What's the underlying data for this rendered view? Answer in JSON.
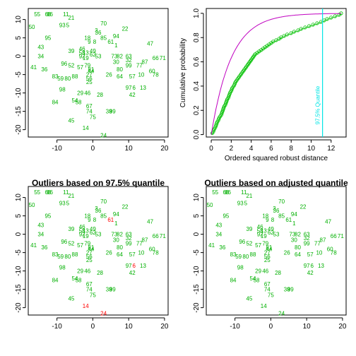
{
  "colors": {
    "normal": "#00b000",
    "outlier": "#ff0000",
    "curve": "#c000c0",
    "quantile_line": "#00e5e5",
    "ecdf": "#00c000",
    "axis": "#000000"
  },
  "chart_data": [
    {
      "type": "scatter",
      "title": "",
      "xlabel": "",
      "ylabel": "",
      "xlim": [
        -18,
        21
      ],
      "ylim": [
        -22,
        13
      ],
      "xticks": [
        -10,
        0,
        10,
        20
      ],
      "yticks": [
        -20,
        -15,
        -10,
        -5,
        0,
        5,
        10
      ],
      "xtick_labels": [
        "-10",
        "0",
        "10",
        "20"
      ],
      "ytick_labels": [
        "-20",
        "-15",
        "-10",
        "-5",
        "0",
        "5",
        "10"
      ],
      "outliers": []
    },
    {
      "type": "line",
      "title": "",
      "xlabel": "Ordered squared robust distance",
      "ylabel": "Cumulative probability",
      "xlim": [
        -0.5,
        13.5
      ],
      "ylim": [
        -0.02,
        1.04
      ],
      "xticks": [
        0,
        2,
        4,
        6,
        8,
        10,
        12
      ],
      "yticks": [
        0,
        0.2,
        0.4,
        0.6,
        0.8,
        1.0
      ],
      "xtick_labels": [
        "0",
        "2",
        "4",
        "6",
        "8",
        "10",
        "12"
      ],
      "ytick_labels": [
        "0.0",
        "0.2",
        "0.4",
        "0.6",
        "0.8",
        "1.0"
      ],
      "quantile_x": 11.14,
      "quantile_label": "97.5% Quantile"
    },
    {
      "type": "scatter",
      "title": "Outliers based on 97.5% quantile",
      "xlabel": "",
      "ylabel": "",
      "xlim": [
        -18,
        21
      ],
      "ylim": [
        -22,
        13
      ],
      "xticks": [
        -10,
        0,
        10,
        20
      ],
      "yticks": [
        -20,
        -15,
        -10,
        -5,
        0,
        5,
        10
      ],
      "xtick_labels": [
        "-10",
        "0",
        "10",
        "20"
      ],
      "ytick_labels": [
        "-20",
        "-15",
        "-10",
        "-5",
        "0",
        "5",
        "10"
      ],
      "outliers": [
        "14",
        "24",
        "61",
        "6"
      ]
    },
    {
      "type": "scatter",
      "title": "Outliers based on adjusted quantile",
      "xlabel": "",
      "ylabel": "",
      "xlim": [
        -18,
        21
      ],
      "ylim": [
        -22,
        13
      ],
      "xticks": [
        -10,
        0,
        10,
        20
      ],
      "yticks": [
        -20,
        -15,
        -10,
        -5,
        0,
        5,
        10
      ],
      "xtick_labels": [
        "-10",
        "0",
        "10",
        "20"
      ],
      "ytick_labels": [
        "-20",
        "-15",
        "-10",
        "-5",
        "0",
        "5",
        "10"
      ],
      "outliers": []
    }
  ],
  "points": [
    {
      "id": "55",
      "x": -15.5,
      "y": 11.5
    },
    {
      "id": "68",
      "x": -12.5,
      "y": 11.5
    },
    {
      "id": "86",
      "x": -12,
      "y": 11.5
    },
    {
      "id": "11",
      "x": -7.5,
      "y": 11.5
    },
    {
      "id": "21",
      "x": -6,
      "y": 10.5
    },
    {
      "id": "70",
      "x": 3,
      "y": 9
    },
    {
      "id": "93",
      "x": -8.5,
      "y": 8.5
    },
    {
      "id": "5",
      "x": -7,
      "y": 8.5
    },
    {
      "id": "50",
      "x": -17,
      "y": 8
    },
    {
      "id": "3",
      "x": 1,
      "y": 7
    },
    {
      "id": "22",
      "x": 9,
      "y": 7.5
    },
    {
      "id": "36",
      "x": 1.5,
      "y": 6.5
    },
    {
      "id": "95",
      "x": -12.5,
      "y": 5
    },
    {
      "id": "18",
      "x": -1.5,
      "y": 5
    },
    {
      "id": "85",
      "x": 3,
      "y": 5
    },
    {
      "id": "94",
      "x": 6.5,
      "y": 5.5
    },
    {
      "id": "9",
      "x": -1,
      "y": 4
    },
    {
      "id": "8",
      "x": 0.5,
      "y": 4
    },
    {
      "id": "61",
      "x": 5,
      "y": 4
    },
    {
      "id": "1",
      "x": 6.5,
      "y": 3
    },
    {
      "id": "47",
      "x": 16,
      "y": 3.5
    },
    {
      "id": "43",
      "x": -14.5,
      "y": 2.5
    },
    {
      "id": "39",
      "x": -6,
      "y": 1.5
    },
    {
      "id": "46",
      "x": -3,
      "y": 2
    },
    {
      "id": "49",
      "x": 0,
      "y": 1.5
    },
    {
      "id": "58",
      "x": -3,
      "y": 1
    },
    {
      "id": "13",
      "x": -2,
      "y": 1
    },
    {
      "id": "62",
      "x": 0,
      "y": 0.5
    },
    {
      "id": "34",
      "x": -14.5,
      "y": 0
    },
    {
      "id": "92",
      "x": -3,
      "y": 0
    },
    {
      "id": "53",
      "x": 1.5,
      "y": 0
    },
    {
      "id": "73",
      "x": 6,
      "y": 0
    },
    {
      "id": "82",
      "x": 7.5,
      "y": 0
    },
    {
      "id": "63",
      "x": 10,
      "y": 0
    },
    {
      "id": "66",
      "x": 17.5,
      "y": -0.5
    },
    {
      "id": "71",
      "x": 19.5,
      "y": -0.5
    },
    {
      "id": "19",
      "x": -2,
      "y": -0.5
    },
    {
      "id": "30",
      "x": 6.5,
      "y": -1.5
    },
    {
      "id": "87",
      "x": 14.5,
      "y": -1.5
    },
    {
      "id": "32",
      "x": 10,
      "y": -1
    },
    {
      "id": "96",
      "x": -8,
      "y": -2
    },
    {
      "id": "52",
      "x": -6,
      "y": -2.5
    },
    {
      "id": "79",
      "x": -1.5,
      "y": -2.5
    },
    {
      "id": "99",
      "x": 10,
      "y": -2.5
    },
    {
      "id": "77",
      "x": 13,
      "y": -2.5
    },
    {
      "id": "41",
      "x": -16.5,
      "y": -3
    },
    {
      "id": "36",
      "x": -13.5,
      "y": -3.5
    },
    {
      "id": "57",
      "x": -3.5,
      "y": -3
    },
    {
      "id": "81",
      "x": -0.5,
      "y": -3.5
    },
    {
      "id": "44",
      "x": -0.5,
      "y": -4
    },
    {
      "id": "80",
      "x": 7.5,
      "y": -3.5
    },
    {
      "id": "60",
      "x": 16.5,
      "y": -4
    },
    {
      "id": "26",
      "x": 4.5,
      "y": -5
    },
    {
      "id": "27",
      "x": -1,
      "y": -5
    },
    {
      "id": "64",
      "x": 7.5,
      "y": -5.5
    },
    {
      "id": "57",
      "x": 11,
      "y": -5.5
    },
    {
      "id": "10",
      "x": 13.5,
      "y": -5
    },
    {
      "id": "78",
      "x": 17.5,
      "y": -5
    },
    {
      "id": "83",
      "x": -10.5,
      "y": -5.5
    },
    {
      "id": "59",
      "x": -9,
      "y": -6
    },
    {
      "id": "80",
      "x": -7,
      "y": -6
    },
    {
      "id": "88",
      "x": -5,
      "y": -5.5
    },
    {
      "id": "56",
      "x": -1,
      "y": -6
    },
    {
      "id": "25",
      "x": -1,
      "y": -7
    },
    {
      "id": "97",
      "x": 10,
      "y": -8.5
    },
    {
      "id": "6",
      "x": 11.5,
      "y": -8.5
    },
    {
      "id": "13",
      "x": 14,
      "y": -8.5
    },
    {
      "id": "98",
      "x": -8.5,
      "y": -9
    },
    {
      "id": "29",
      "x": -3.5,
      "y": -10
    },
    {
      "id": "46",
      "x": -1.5,
      "y": -10
    },
    {
      "id": "28",
      "x": 2,
      "y": -10.5
    },
    {
      "id": "42",
      "x": 11,
      "y": -10.5
    },
    {
      "id": "84",
      "x": -10.5,
      "y": -12.5
    },
    {
      "id": "54",
      "x": -5,
      "y": -12
    },
    {
      "id": "58",
      "x": -4,
      "y": -12.5
    },
    {
      "id": "67",
      "x": -1,
      "y": -13.5
    },
    {
      "id": "74",
      "x": -1,
      "y": -15
    },
    {
      "id": "38",
      "x": 4.5,
      "y": -15
    },
    {
      "id": "99",
      "x": 5.5,
      "y": -15
    },
    {
      "id": "75",
      "x": 0,
      "y": -16.5
    },
    {
      "id": "45",
      "x": -6,
      "y": -17.5
    },
    {
      "id": "14",
      "x": -2,
      "y": -19.5
    },
    {
      "id": "24",
      "x": 3,
      "y": -21.5
    }
  ],
  "ecdf_x": [
    0.1,
    0.2,
    0.25,
    0.3,
    0.4,
    0.45,
    0.5,
    0.55,
    0.6,
    0.7,
    0.75,
    0.8,
    0.9,
    1.0,
    1.05,
    1.1,
    1.15,
    1.2,
    1.25,
    1.3,
    1.4,
    1.45,
    1.5,
    1.55,
    1.6,
    1.7,
    1.75,
    1.8,
    1.85,
    1.9,
    2.0,
    2.05,
    2.1,
    2.2,
    2.3,
    2.35,
    2.4,
    2.5,
    2.6,
    2.7,
    2.8,
    2.9,
    3.0,
    3.1,
    3.2,
    3.3,
    3.4,
    3.5,
    3.6,
    3.7,
    3.8,
    3.9,
    4.0,
    4.1,
    4.2,
    4.3,
    4.4,
    4.6,
    4.8,
    5.0,
    5.2,
    5.4,
    5.6,
    5.8,
    6.0,
    6.2,
    6.5,
    6.8,
    7.0,
    7.3,
    7.6,
    8.0,
    8.3,
    8.7,
    9.0,
    9.4,
    9.8,
    10.2,
    10.6,
    11.0,
    11.3,
    11.6,
    12.0,
    12.4,
    12.8,
    13.0
  ]
}
